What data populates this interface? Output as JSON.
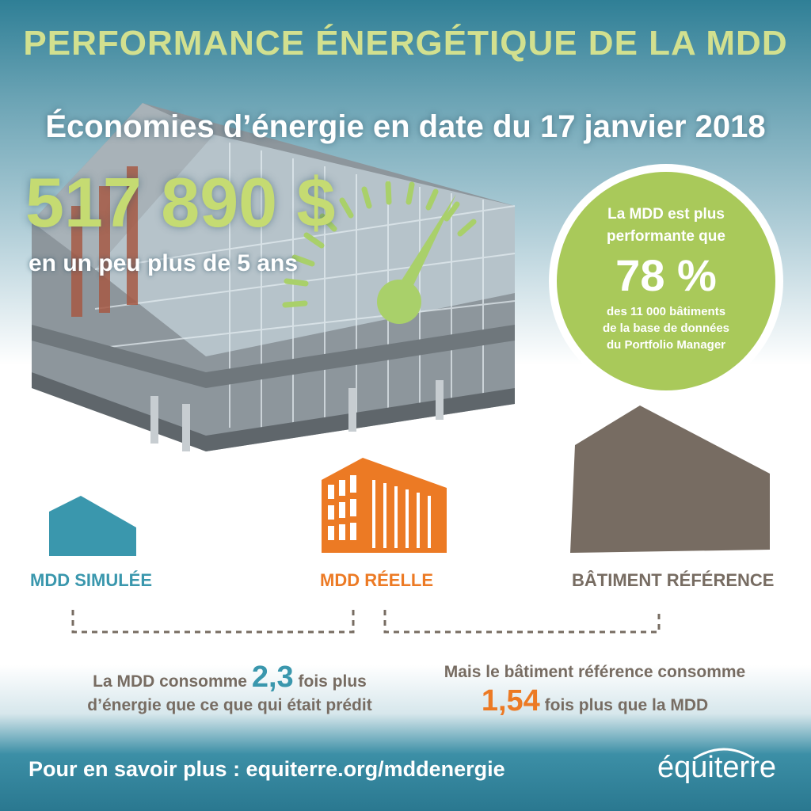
{
  "header": {
    "title": "PERFORMANCE ÉNERGÉTIQUE DE LA MDD",
    "subtitle": "Économies d’énergie en date du 17 janvier 2018"
  },
  "savings": {
    "amount": "517 890 $",
    "period": "en un peu plus de 5 ans"
  },
  "badge": {
    "line1a": "La MDD est plus",
    "line1b": "performante que",
    "percent": "78 %",
    "line2a": "des 11 000 bâtiments",
    "line2b": "de la base de données",
    "line2c": "du Portfolio Manager"
  },
  "comparison": {
    "simulated_label": "MDD SIMULÉE",
    "real_label": "MDD RÉELLE",
    "reference_label": "BÂTIMENT RÉFÉRENCE",
    "left_text_prefix": "La MDD consomme",
    "left_number": "2,3",
    "left_text_suffix": "fois plus",
    "left_text_line2": "d’énergie que ce que qui était prédit",
    "right_text_line1": "Mais le bâtiment référence consomme",
    "right_number": "1,54",
    "right_text_suffix": "fois plus que la MDD"
  },
  "footer": {
    "link_text": "Pour en savoir plus : equiterre.org/mddenergie",
    "logo_text": "équiterre"
  },
  "colors": {
    "title_green": "#d2e08f",
    "badge_green": "#a9c95a",
    "simulated_blue": "#3a97ad",
    "real_orange": "#ec7a24",
    "reference_brown": "#776c62"
  }
}
